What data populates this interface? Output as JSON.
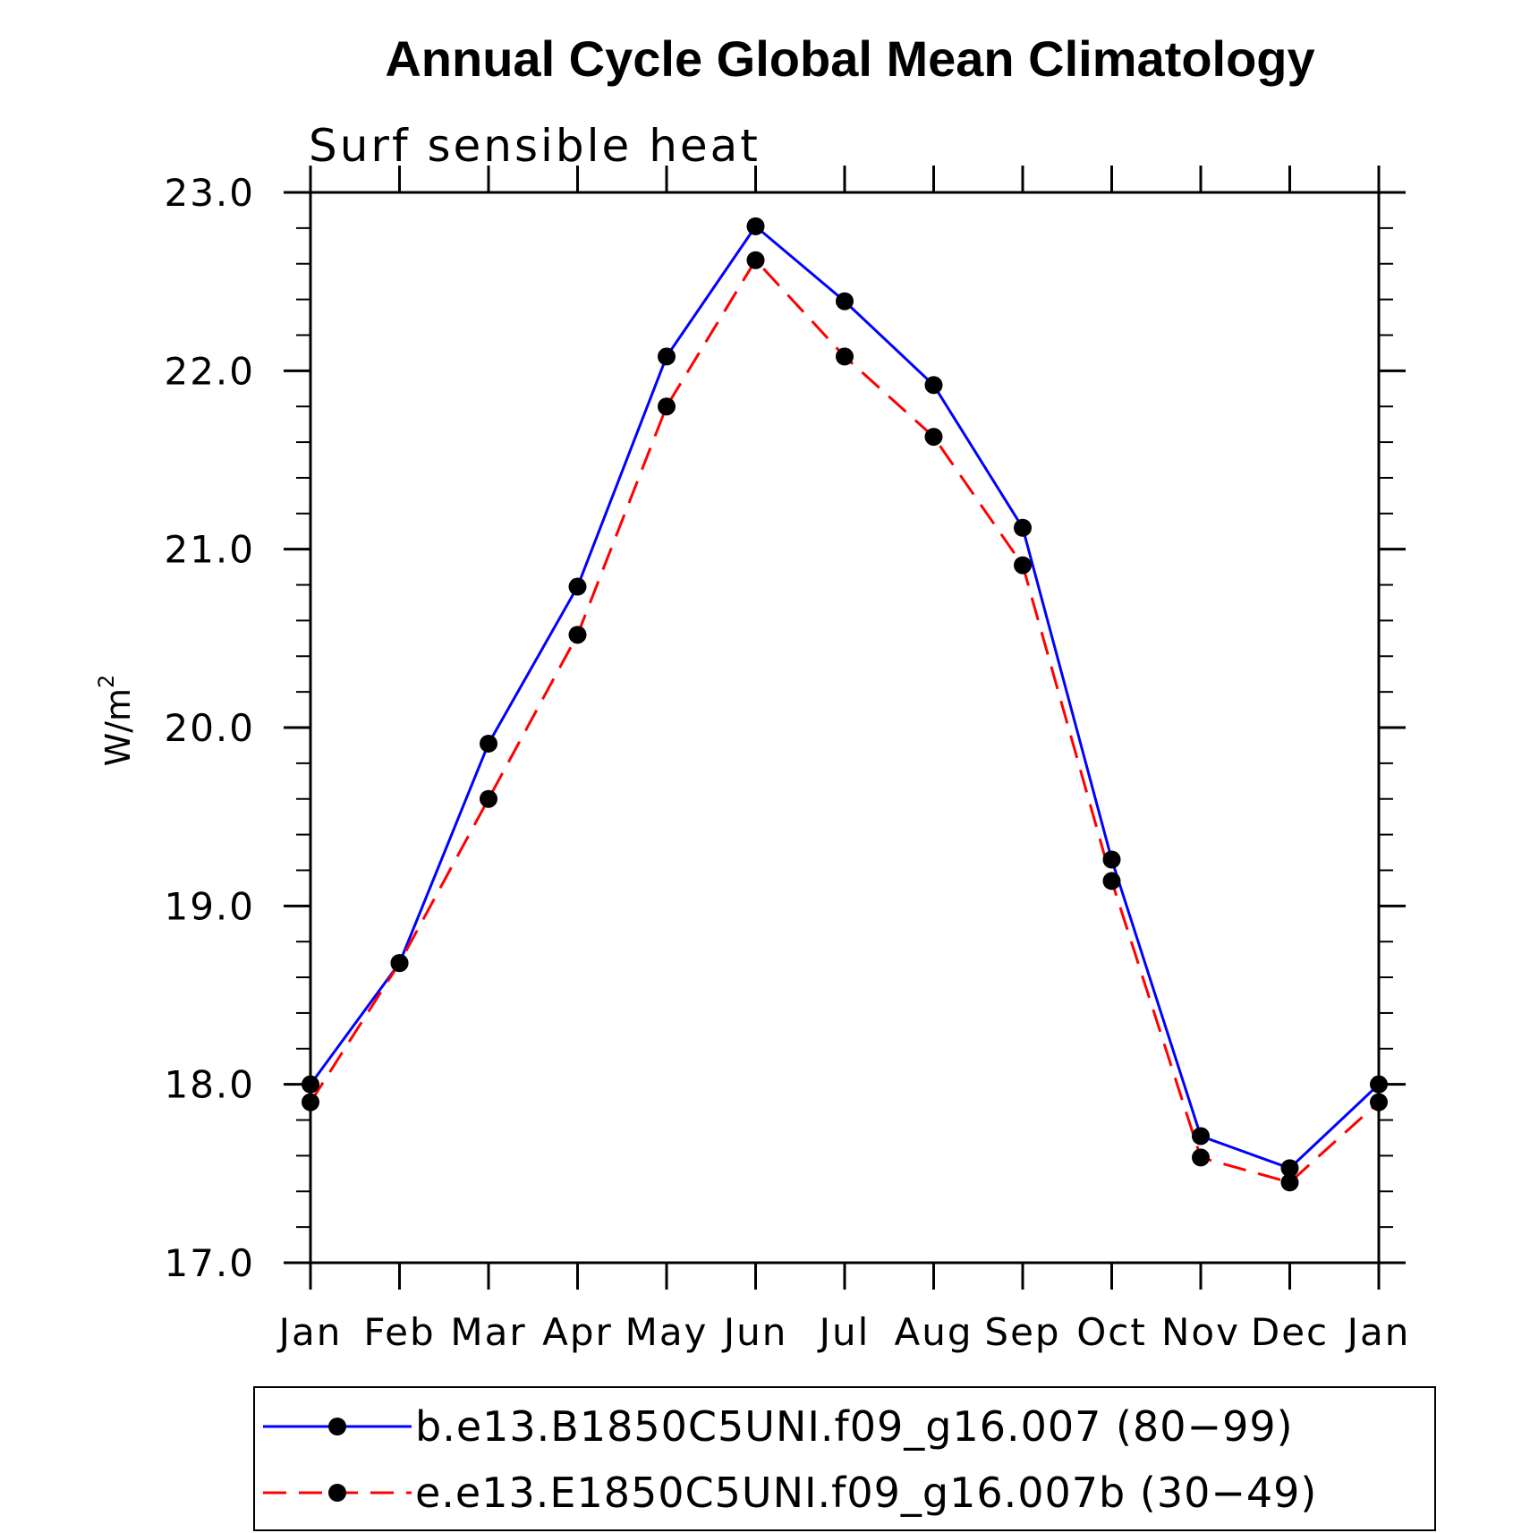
{
  "chart_data": {
    "type": "line",
    "title": "Annual Cycle Global Mean Climatology",
    "subtitle": "Surf sensible heat",
    "xlabel": "",
    "ylabel": "W/m",
    "ylabel_superscript": "2",
    "categories": [
      "Jan",
      "Feb",
      "Mar",
      "Apr",
      "May",
      "Jun",
      "Jul",
      "Aug",
      "Sep",
      "Oct",
      "Nov",
      "Dec",
      "Jan"
    ],
    "ylim": [
      17.0,
      23.0
    ],
    "yticks": [
      "17.0",
      "18.0",
      "19.0",
      "20.0",
      "21.0",
      "22.0",
      "23.0"
    ],
    "grid": false,
    "legend_position": "bottom",
    "series": [
      {
        "name": "b.e13.B1850C5UNI.f09_g16.007 (80−99)",
        "color": "#0000ff",
        "line_style": "solid",
        "marker": "filled-circle",
        "marker_color": "#000000",
        "values": [
          18.0,
          18.68,
          19.91,
          20.79,
          22.08,
          22.81,
          22.39,
          21.92,
          21.12,
          19.26,
          17.71,
          17.53,
          18.0
        ]
      },
      {
        "name": "e.e13.E1850C5UNI.f09_g16.007b (30−49)",
        "color": "#ff0000",
        "line_style": "dashed",
        "marker": "filled-circle",
        "marker_color": "#000000",
        "values": [
          17.9,
          18.68,
          19.6,
          20.52,
          21.8,
          22.62,
          22.08,
          21.63,
          20.91,
          19.14,
          17.59,
          17.45,
          17.9
        ]
      }
    ]
  }
}
